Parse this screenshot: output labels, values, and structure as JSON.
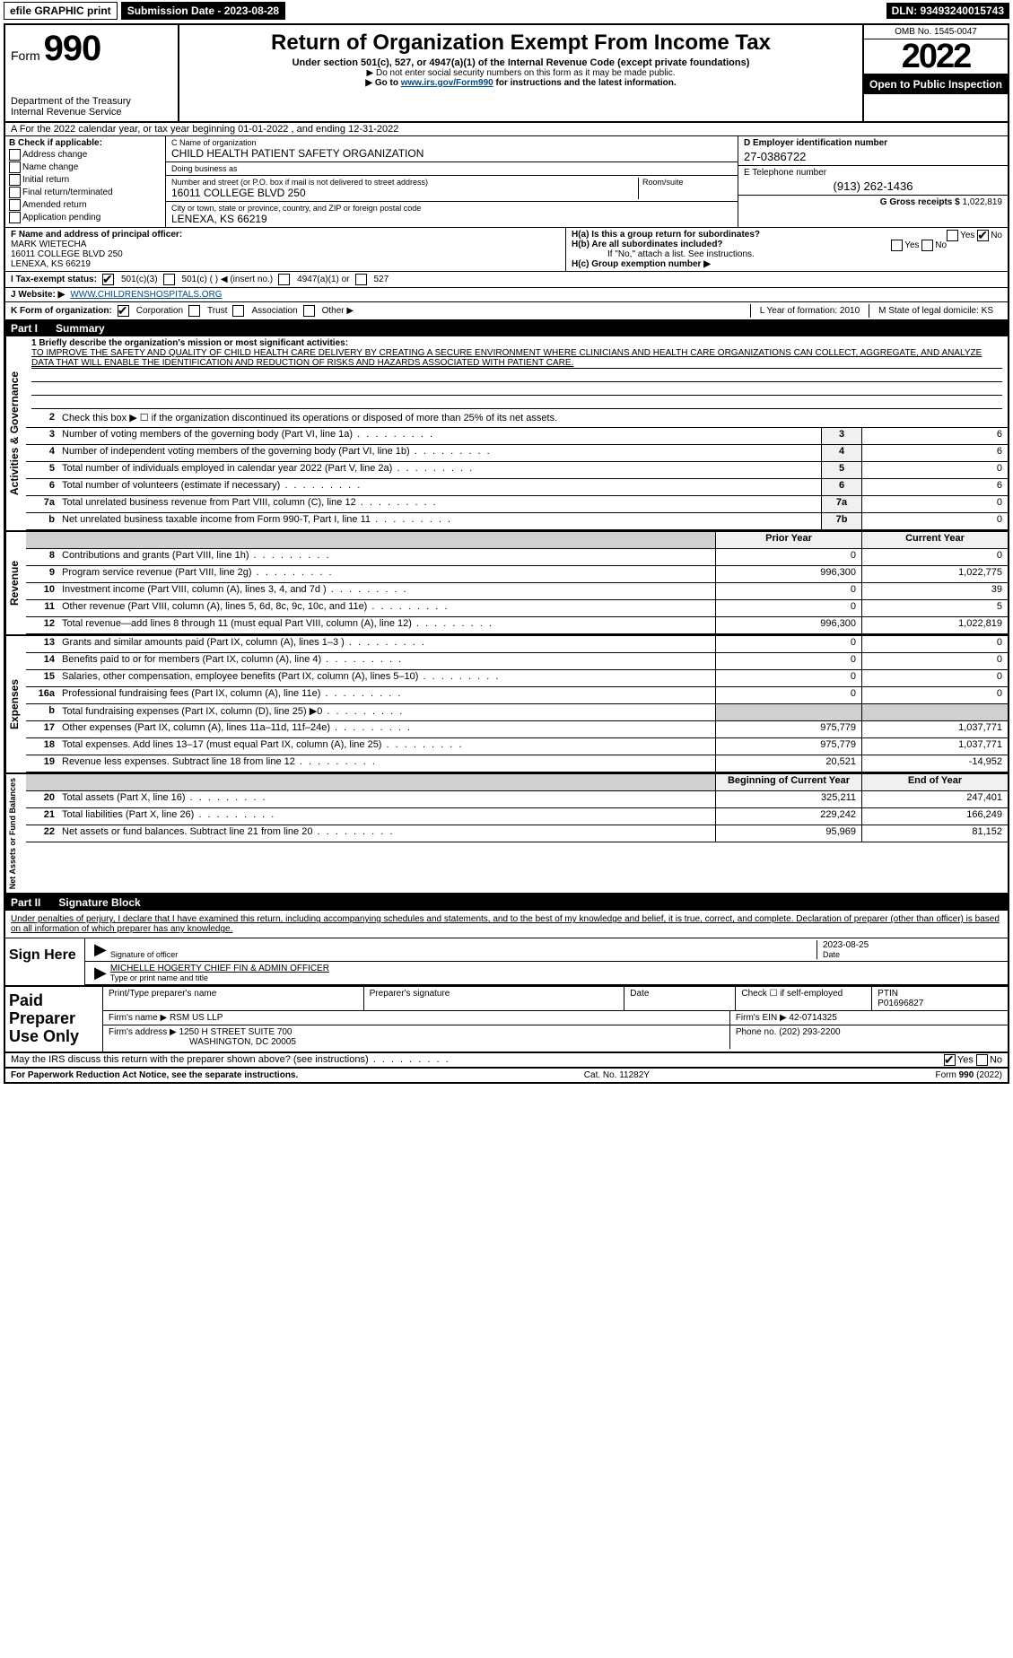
{
  "top_bar": {
    "efile": "efile GRAPHIC print",
    "submission": "Submission Date - 2023-08-28",
    "dln": "DLN: 93493240015743"
  },
  "header": {
    "form_label": "Form",
    "form_number": "990",
    "dept": "Department of the Treasury",
    "irs": "Internal Revenue Service",
    "title": "Return of Organization Exempt From Income Tax",
    "subtitle": "Under section 501(c), 527, or 4947(a)(1) of the Internal Revenue Code (except private foundations)",
    "note1": "▶ Do not enter social security numbers on this form as it may be made public.",
    "note2_pre": "▶ Go to ",
    "note2_link": "www.irs.gov/Form990",
    "note2_post": " for instructions and the latest information.",
    "omb": "OMB No. 1545-0047",
    "year": "2022",
    "open": "Open to Public Inspection"
  },
  "row_a": "A For the 2022 calendar year, or tax year beginning 01-01-2022   , and ending 12-31-2022",
  "section_b": {
    "label": "B Check if applicable:",
    "items": [
      "Address change",
      "Name change",
      "Initial return",
      "Final return/terminated",
      "Amended return",
      "Application pending"
    ]
  },
  "section_c": {
    "name_label": "C Name of organization",
    "name": "CHILD HEALTH PATIENT SAFETY ORGANIZATION",
    "dba_label": "Doing business as",
    "dba": "",
    "street_label": "Number and street (or P.O. box if mail is not delivered to street address)",
    "room_label": "Room/suite",
    "street": "16011 COLLEGE BLVD 250",
    "city_label": "City or town, state or province, country, and ZIP or foreign postal code",
    "city": "LENEXA, KS  66219"
  },
  "section_d": {
    "ein_label": "D Employer identification number",
    "ein": "27-0386722",
    "phone_label": "E Telephone number",
    "phone": "(913) 262-1436",
    "gross_label": "G Gross receipts $",
    "gross": "1,022,819"
  },
  "section_f": {
    "label": "F Name and address of principal officer:",
    "name": "MARK WIETECHA",
    "addr1": "16011 COLLEGE BLVD 250",
    "addr2": "LENEXA, KS  66219"
  },
  "section_h": {
    "ha": "H(a)  Is this a group return for subordinates?",
    "ha_yes": "Yes",
    "ha_no": "No",
    "hb": "H(b)  Are all subordinates included?",
    "hb_note": "If \"No,\" attach a list. See instructions.",
    "hc": "H(c)  Group exemption number ▶"
  },
  "row_i": {
    "label": "I  Tax-exempt status:",
    "opt1": "501(c)(3)",
    "opt2": "501(c) (   ) ◀ (insert no.)",
    "opt3": "4947(a)(1) or",
    "opt4": "527"
  },
  "row_j": {
    "label": "J  Website: ▶",
    "url": "WWW.CHILDRENSHOSPITALS.ORG"
  },
  "row_k": {
    "label": "K Form of organization:",
    "opts": [
      "Corporation",
      "Trust",
      "Association",
      "Other ▶"
    ]
  },
  "row_lm": {
    "l": "L Year of formation: 2010",
    "m": "M State of legal domicile: KS"
  },
  "part1": {
    "label": "Part I",
    "title": "Summary"
  },
  "summary": {
    "line1_label": "1  Briefly describe the organization's mission or most significant activities:",
    "mission": "TO IMPROVE THE SAFETY AND QUALITY OF CHILD HEALTH CARE DELIVERY BY CREATING A SECURE ENVIRONMENT WHERE CLINICIANS AND HEALTH CARE ORGANIZATIONS CAN COLLECT, AGGREGATE, AND ANALYZE DATA THAT WILL ENABLE THE IDENTIFICATION AND REDUCTION OF RISKS AND HAZARDS ASSOCIATED WITH PATIENT CARE.",
    "line2": "Check this box ▶ ☐  if the organization discontinued its operations or disposed of more than 25% of its net assets.",
    "rows_gov": [
      {
        "n": "3",
        "d": "Number of voting members of the governing body (Part VI, line 1a)",
        "box": "3",
        "v": "6"
      },
      {
        "n": "4",
        "d": "Number of independent voting members of the governing body (Part VI, line 1b)",
        "box": "4",
        "v": "6"
      },
      {
        "n": "5",
        "d": "Total number of individuals employed in calendar year 2022 (Part V, line 2a)",
        "box": "5",
        "v": "0"
      },
      {
        "n": "6",
        "d": "Total number of volunteers (estimate if necessary)",
        "box": "6",
        "v": "6"
      },
      {
        "n": "7a",
        "d": "Total unrelated business revenue from Part VIII, column (C), line 12",
        "box": "7a",
        "v": "0"
      },
      {
        "n": "b",
        "d": "Net unrelated business taxable income from Form 990-T, Part I, line 11",
        "box": "7b",
        "v": "0"
      }
    ],
    "col_headers": {
      "prior": "Prior Year",
      "current": "Current Year"
    },
    "rows_rev": [
      {
        "n": "8",
        "d": "Contributions and grants (Part VIII, line 1h)",
        "p": "0",
        "c": "0"
      },
      {
        "n": "9",
        "d": "Program service revenue (Part VIII, line 2g)",
        "p": "996,300",
        "c": "1,022,775"
      },
      {
        "n": "10",
        "d": "Investment income (Part VIII, column (A), lines 3, 4, and 7d )",
        "p": "0",
        "c": "39"
      },
      {
        "n": "11",
        "d": "Other revenue (Part VIII, column (A), lines 5, 6d, 8c, 9c, 10c, and 11e)",
        "p": "0",
        "c": "5"
      },
      {
        "n": "12",
        "d": "Total revenue—add lines 8 through 11 (must equal Part VIII, column (A), line 12)",
        "p": "996,300",
        "c": "1,022,819"
      }
    ],
    "rows_exp": [
      {
        "n": "13",
        "d": "Grants and similar amounts paid (Part IX, column (A), lines 1–3 )",
        "p": "0",
        "c": "0"
      },
      {
        "n": "14",
        "d": "Benefits paid to or for members (Part IX, column (A), line 4)",
        "p": "0",
        "c": "0"
      },
      {
        "n": "15",
        "d": "Salaries, other compensation, employee benefits (Part IX, column (A), lines 5–10)",
        "p": "0",
        "c": "0"
      },
      {
        "n": "16a",
        "d": "Professional fundraising fees (Part IX, column (A), line 11e)",
        "p": "0",
        "c": "0"
      },
      {
        "n": "b",
        "d": "Total fundraising expenses (Part IX, column (D), line 25) ▶0",
        "p": "",
        "c": "",
        "shade": true
      },
      {
        "n": "17",
        "d": "Other expenses (Part IX, column (A), lines 11a–11d, 11f–24e)",
        "p": "975,779",
        "c": "1,037,771"
      },
      {
        "n": "18",
        "d": "Total expenses. Add lines 13–17 (must equal Part IX, column (A), line 25)",
        "p": "975,779",
        "c": "1,037,771"
      },
      {
        "n": "19",
        "d": "Revenue less expenses. Subtract line 18 from line 12",
        "p": "20,521",
        "c": "-14,952"
      }
    ],
    "col_headers2": {
      "prior": "Beginning of Current Year",
      "current": "End of Year"
    },
    "rows_net": [
      {
        "n": "20",
        "d": "Total assets (Part X, line 16)",
        "p": "325,211",
        "c": "247,401"
      },
      {
        "n": "21",
        "d": "Total liabilities (Part X, line 26)",
        "p": "229,242",
        "c": "166,249"
      },
      {
        "n": "22",
        "d": "Net assets or fund balances. Subtract line 21 from line 20",
        "p": "95,969",
        "c": "81,152"
      }
    ],
    "side_labels": {
      "gov": "Activities & Governance",
      "rev": "Revenue",
      "exp": "Expenses",
      "net": "Net Assets or Fund Balances"
    }
  },
  "part2": {
    "label": "Part II",
    "title": "Signature Block"
  },
  "sig": {
    "declaration": "Under penalties of perjury, I declare that I have examined this return, including accompanying schedules and statements, and to the best of my knowledge and belief, it is true, correct, and complete. Declaration of preparer (other than officer) is based on all information of which preparer has any knowledge.",
    "sign_here": "Sign Here",
    "sig_officer": "Signature of officer",
    "date_label": "Date",
    "date": "2023-08-25",
    "name_title": "MICHELLE HOGERTY CHIEF FIN & ADMIN OFFICER",
    "name_title_label": "Type or print name and title"
  },
  "paid": {
    "label": "Paid Preparer Use Only",
    "h1": "Print/Type preparer's name",
    "h2": "Preparer's signature",
    "h3": "Date",
    "h4": "Check ☐ if self-employed",
    "h5": "PTIN",
    "ptin": "P01696827",
    "firm_name_label": "Firm's name    ▶",
    "firm_name": "RSM US LLP",
    "firm_ein_label": "Firm's EIN ▶",
    "firm_ein": "42-0714325",
    "firm_addr_label": "Firm's address ▶",
    "firm_addr1": "1250 H STREET SUITE 700",
    "firm_addr2": "WASHINGTON, DC  20005",
    "phone_label": "Phone no.",
    "phone": "(202) 293-2200"
  },
  "footer": {
    "discuss": "May the IRS discuss this return with the preparer shown above? (see instructions)",
    "yes": "Yes",
    "no": "No",
    "paperwork": "For Paperwork Reduction Act Notice, see the separate instructions.",
    "cat": "Cat. No. 11282Y",
    "form": "Form 990 (2022)"
  }
}
